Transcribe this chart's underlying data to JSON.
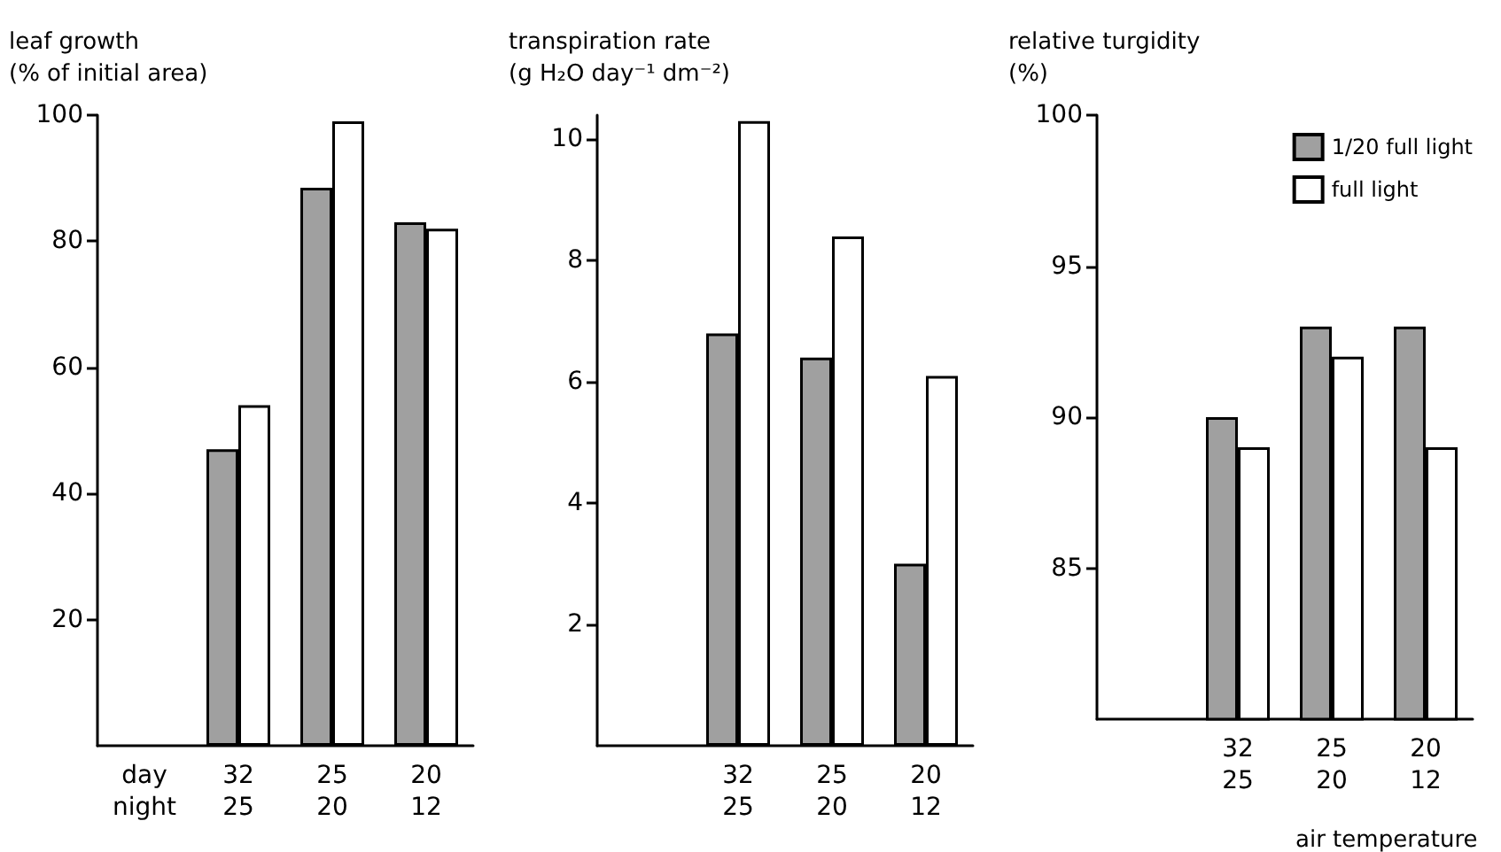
{
  "chart_data": [
    {
      "type": "bar",
      "ylabel": "leaf growth\n(% of initial area)",
      "categories": [
        "day\nnight",
        "32\n25",
        "25\n20",
        "20\n12"
      ],
      "series": [
        {
          "color": "#a0a0a0",
          "values": [
            null,
            47,
            88.5,
            83
          ]
        },
        {
          "color": "#ffffff",
          "values": [
            null,
            54,
            99,
            82
          ]
        }
      ],
      "ylim": [
        0,
        100
      ],
      "yticks": [
        20,
        40,
        60,
        80,
        100
      ],
      "grid": false,
      "legend": false
    },
    {
      "type": "bar",
      "ylabel": "transpiration rate\n(g H₂O day⁻¹ dm⁻²)",
      "categories": [
        null,
        "32\n25",
        "25\n20",
        "20\n12"
      ],
      "series": [
        {
          "color": "#a0a0a0",
          "values": [
            null,
            6.8,
            6.4,
            3.0
          ]
        },
        {
          "color": "#ffffff",
          "values": [
            null,
            10.3,
            8.4,
            6.1
          ]
        }
      ],
      "ylim": [
        0,
        10.4
      ],
      "yticks": [
        2,
        4,
        6,
        8,
        10
      ],
      "grid": false,
      "legend": false
    },
    {
      "type": "bar",
      "ylabel": "relative turgidity\n(%)",
      "xlabel": "air temperature",
      "categories": [
        null,
        "32\n25",
        "25\n20",
        "20\n12"
      ],
      "series": [
        {
          "name": "1/20 full light",
          "color": "#a0a0a0",
          "values": [
            null,
            90,
            93,
            93
          ]
        },
        {
          "name": "full light",
          "color": "#ffffff",
          "values": [
            null,
            89,
            92,
            89
          ]
        }
      ],
      "ylim": [
        80,
        100
      ],
      "yticks": [
        85,
        90,
        95,
        100
      ],
      "grid": false,
      "legend": "top right"
    }
  ]
}
